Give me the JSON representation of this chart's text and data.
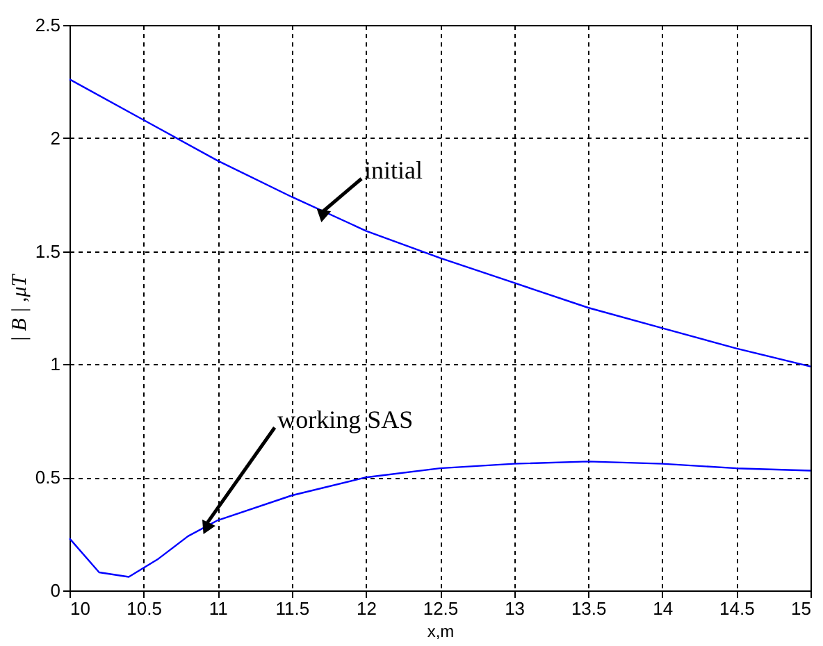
{
  "chart_data": {
    "type": "line",
    "xlabel": "x,m",
    "ylabel": "| B | ,μT",
    "xlim": [
      10,
      15
    ],
    "xticks": [
      10,
      10.5,
      11,
      11.5,
      12,
      12.5,
      13,
      13.5,
      14,
      14.5,
      15
    ],
    "ylim": [
      0,
      2.5
    ],
    "yticks": [
      0,
      0.5,
      1,
      1.5,
      2,
      2.5
    ],
    "grid": true,
    "line_style": "solid",
    "series": [
      {
        "color": "#0000ff",
        "x": [
          10,
          10.5,
          11,
          11.5,
          12,
          12.5,
          13,
          13.5,
          14,
          14.5,
          15
        ],
        "values": [
          2.26,
          2.08,
          1.9,
          1.74,
          1.59,
          1.47,
          1.36,
          1.25,
          1.16,
          1.07,
          0.99
        ]
      },
      {
        "color": "#0000ff",
        "x": [
          10,
          10.2,
          10.4,
          10.6,
          10.8,
          11,
          11.5,
          12,
          12.5,
          13,
          13.5,
          14,
          14.5,
          15
        ],
        "values": [
          0.23,
          0.08,
          0.06,
          0.14,
          0.24,
          0.31,
          0.42,
          0.5,
          0.54,
          0.56,
          0.57,
          0.56,
          0.54,
          0.53
        ]
      }
    ],
    "annotations": [
      {
        "text": "initial",
        "x": 11.7,
        "y": 1.67
      },
      {
        "text": "working SAS",
        "x": 10.92,
        "y": 0.29
      }
    ]
  }
}
